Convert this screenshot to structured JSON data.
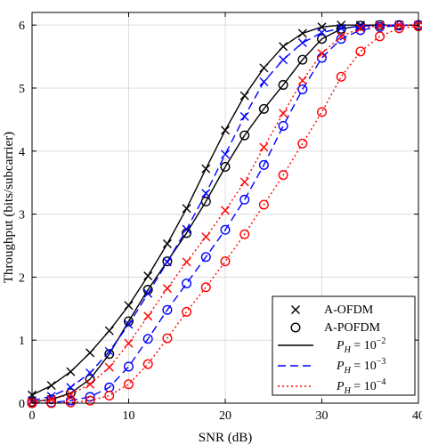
{
  "chart_data": {
    "type": "line",
    "title": "",
    "xlabel": "SNR (dB)",
    "ylabel": "Throughput (bits/subcarrier)",
    "xlim": [
      0,
      40
    ],
    "ylim": [
      0,
      6.2
    ],
    "xticks": [
      0,
      10,
      20,
      30,
      40
    ],
    "yticks": [
      0,
      1,
      2,
      3,
      4,
      5,
      6
    ],
    "grid": true,
    "legend_position": "bottom-right",
    "legend": {
      "markers": [
        {
          "label": "A-OFDM",
          "marker": "x"
        },
        {
          "label": "A-POFDM",
          "marker": "o"
        }
      ],
      "lines": [
        {
          "base": "P",
          "sub": "H",
          "eq": " = 10",
          "exp": "−2",
          "color": "#000000",
          "dash": "solid"
        },
        {
          "base": "P",
          "sub": "H",
          "eq": " = 10",
          "exp": "−3",
          "color": "#0000ff",
          "dash": "dashed"
        },
        {
          "base": "P",
          "sub": "H",
          "eq": " = 10",
          "exp": "−4",
          "color": "#ff0000",
          "dash": "dotted"
        }
      ]
    },
    "series": [
      {
        "group": "P_H=10^-2",
        "marker": "x",
        "color": "#000000",
        "dash": "solid",
        "x": [
          0,
          2,
          4,
          6,
          8,
          10,
          12,
          14,
          16,
          18,
          20,
          22,
          24,
          26,
          28,
          30,
          32,
          34,
          36,
          38,
          40
        ],
        "y": [
          0.13,
          0.28,
          0.5,
          0.8,
          1.15,
          1.55,
          2.02,
          2.53,
          3.09,
          3.72,
          4.33,
          4.88,
          5.32,
          5.66,
          5.87,
          5.97,
          6.0,
          6.0,
          6.0,
          6.0,
          6.0
        ]
      },
      {
        "group": "P_H=10^-2",
        "marker": "o",
        "color": "#000000",
        "dash": "solid",
        "x": [
          0,
          2,
          4,
          6,
          8,
          10,
          12,
          14,
          16,
          18,
          20,
          22,
          24,
          26,
          28,
          30,
          32,
          34,
          36,
          38,
          40
        ],
        "y": [
          0.02,
          0.06,
          0.16,
          0.38,
          0.78,
          1.3,
          1.8,
          2.25,
          2.7,
          3.2,
          3.75,
          4.25,
          4.67,
          5.05,
          5.45,
          5.78,
          5.94,
          5.99,
          6.0,
          6.0,
          6.0
        ]
      },
      {
        "group": "P_H=10^-3",
        "marker": "x",
        "color": "#0000ff",
        "dash": "dashed",
        "x": [
          0,
          2,
          4,
          6,
          8,
          10,
          12,
          14,
          16,
          18,
          20,
          22,
          24,
          26,
          28,
          30,
          32,
          34,
          36,
          38,
          40
        ],
        "y": [
          0.04,
          0.11,
          0.25,
          0.48,
          0.82,
          1.25,
          1.74,
          2.24,
          2.76,
          3.33,
          3.95,
          4.55,
          5.1,
          5.45,
          5.72,
          5.88,
          5.95,
          5.98,
          6.0,
          6.0,
          6.0
        ]
      },
      {
        "group": "P_H=10^-3",
        "marker": "o",
        "color": "#0000ff",
        "dash": "dashed",
        "x": [
          0,
          2,
          4,
          6,
          8,
          10,
          12,
          14,
          16,
          18,
          20,
          22,
          24,
          26,
          28,
          30,
          32,
          34,
          36,
          38,
          40
        ],
        "y": [
          0.0,
          0.01,
          0.04,
          0.1,
          0.25,
          0.58,
          1.02,
          1.48,
          1.9,
          2.32,
          2.75,
          3.23,
          3.78,
          4.4,
          4.98,
          5.48,
          5.78,
          5.92,
          5.97,
          5.99,
          6.0
        ]
      },
      {
        "group": "P_H=10^-4",
        "marker": "x",
        "color": "#ff0000",
        "dash": "dotted",
        "x": [
          0,
          2,
          4,
          6,
          8,
          10,
          12,
          14,
          16,
          18,
          20,
          22,
          24,
          26,
          28,
          30,
          32,
          34,
          36,
          38,
          40
        ],
        "y": [
          0.02,
          0.06,
          0.14,
          0.3,
          0.57,
          0.95,
          1.38,
          1.82,
          2.24,
          2.64,
          3.06,
          3.51,
          4.06,
          4.6,
          5.12,
          5.55,
          5.82,
          5.95,
          5.99,
          6.0,
          6.0
        ]
      },
      {
        "group": "P_H=10^-4",
        "marker": "o",
        "color": "#ff0000",
        "dash": "dotted",
        "x": [
          0,
          2,
          4,
          6,
          8,
          10,
          12,
          14,
          16,
          18,
          20,
          22,
          24,
          26,
          28,
          30,
          32,
          34,
          36,
          38,
          40
        ],
        "y": [
          0.0,
          0.0,
          0.01,
          0.04,
          0.12,
          0.3,
          0.62,
          1.03,
          1.45,
          1.84,
          2.25,
          2.68,
          3.15,
          3.62,
          4.12,
          4.62,
          5.18,
          5.58,
          5.82,
          5.95,
          5.98
        ]
      }
    ]
  }
}
